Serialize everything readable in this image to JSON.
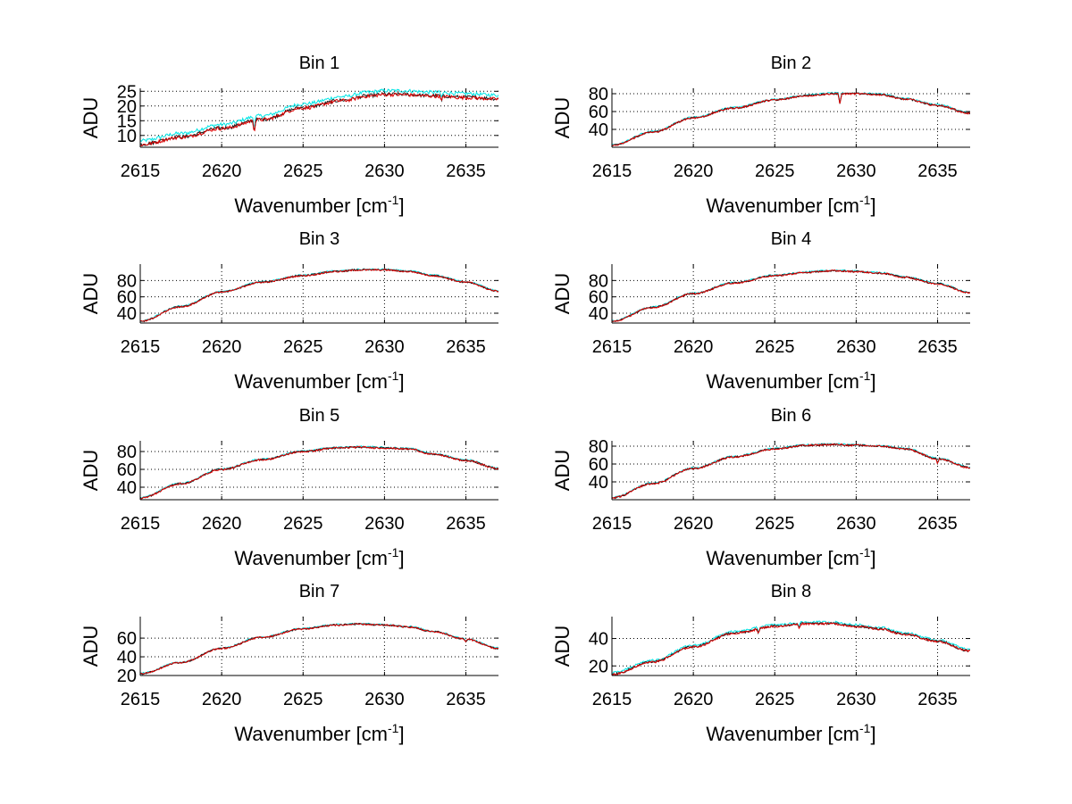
{
  "figure": {
    "background": "#ffffff"
  },
  "series_colors": [
    "#00e5e5",
    "#1a1a1a",
    "#e00000"
  ],
  "chart_data": [
    {
      "type": "line",
      "title": "Bin 1",
      "xlabel": "Wavenumber [cm",
      "xlabel_sup": "-1",
      "xlabel_close": "]",
      "ylabel": "ADU",
      "xlim": [
        2615,
        2637
      ],
      "ylim": [
        6,
        26
      ],
      "xticks": [
        2615,
        2620,
        2625,
        2630,
        2635
      ],
      "yticks": [
        10,
        15,
        20,
        25
      ],
      "curve": {
        "x": [
          2615,
          2617.5,
          2620,
          2622.5,
          2625,
          2627.5,
          2629,
          2630,
          2631,
          2633,
          2635,
          2637
        ],
        "y": [
          7,
          9.5,
          12.5,
          15.5,
          19.5,
          22,
          23.5,
          24,
          24,
          23.5,
          23,
          22.5
        ]
      },
      "dips": [
        {
          "x": 2622.0,
          "depth": 4
        },
        {
          "x": 2633.5,
          "depth": 2
        }
      ],
      "noise": 0.6,
      "cyan_offset": 1.2
    },
    {
      "type": "line",
      "title": "Bin 2",
      "xlabel": "Wavenumber [cm",
      "xlabel_sup": "-1",
      "xlabel_close": "]",
      "ylabel": "ADU",
      "xlim": [
        2615,
        2637
      ],
      "ylim": [
        20,
        86
      ],
      "xticks": [
        2615,
        2620,
        2625,
        2630,
        2635
      ],
      "yticks": [
        40,
        60,
        80
      ],
      "curve": {
        "x": [
          2615,
          2617.5,
          2620,
          2622.5,
          2625,
          2627,
          2628.5,
          2630,
          2631.5,
          2633,
          2635,
          2637
        ],
        "y": [
          22,
          37,
          53,
          64,
          73,
          78,
          80,
          80,
          79,
          74,
          67,
          58
        ]
      },
      "dips": [
        {
          "x": 2629.0,
          "depth": 12
        }
      ],
      "noise": 1.0,
      "cyan_offset": 0.6
    },
    {
      "type": "line",
      "title": "Bin 3",
      "xlabel": "Wavenumber [cm",
      "xlabel_sup": "-1",
      "xlabel_close": "]",
      "ylabel": "ADU",
      "xlim": [
        2615,
        2637
      ],
      "ylim": [
        28,
        100
      ],
      "xticks": [
        2615,
        2620,
        2625,
        2630,
        2635
      ],
      "yticks": [
        40,
        60,
        80
      ],
      "curve": {
        "x": [
          2615,
          2617.5,
          2620,
          2622.5,
          2625,
          2627,
          2628.5,
          2630,
          2631.5,
          2633,
          2635,
          2637
        ],
        "y": [
          30,
          48,
          66,
          78,
          86,
          91,
          93,
          93,
          91,
          86,
          78,
          67
        ]
      },
      "dips": [],
      "noise": 1.0,
      "cyan_offset": 0.5
    },
    {
      "type": "line",
      "title": "Bin 4",
      "xlabel": "Wavenumber [cm",
      "xlabel_sup": "-1",
      "xlabel_close": "]",
      "ylabel": "ADU",
      "xlim": [
        2615,
        2637
      ],
      "ylim": [
        28,
        100
      ],
      "xticks": [
        2615,
        2620,
        2625,
        2630,
        2635
      ],
      "yticks": [
        40,
        60,
        80
      ],
      "curve": {
        "x": [
          2615,
          2617.5,
          2620,
          2622.5,
          2625,
          2627,
          2628.5,
          2630,
          2631.5,
          2633,
          2635,
          2637
        ],
        "y": [
          30,
          47,
          64,
          77,
          86,
          90,
          92,
          91,
          89,
          84,
          76,
          65
        ]
      },
      "dips": [],
      "noise": 1.0,
      "cyan_offset": 0.5
    },
    {
      "type": "line",
      "title": "Bin 5",
      "xlabel": "Wavenumber [cm",
      "xlabel_sup": "-1",
      "xlabel_close": "]",
      "ylabel": "ADU",
      "xlim": [
        2615,
        2637
      ],
      "ylim": [
        26,
        92
      ],
      "xticks": [
        2615,
        2620,
        2625,
        2630,
        2635
      ],
      "yticks": [
        40,
        60,
        80
      ],
      "curve": {
        "x": [
          2615,
          2617.5,
          2620,
          2622.5,
          2625,
          2627,
          2628.5,
          2630,
          2631.5,
          2633,
          2635,
          2637
        ],
        "y": [
          28,
          44,
          60,
          71,
          80,
          84,
          85,
          84,
          83,
          77,
          70,
          61
        ]
      },
      "dips": [],
      "noise": 1.0,
      "cyan_offset": 0.5
    },
    {
      "type": "line",
      "title": "Bin 6",
      "xlabel": "Wavenumber [cm",
      "xlabel_sup": "-1",
      "xlabel_close": "]",
      "ylabel": "ADU",
      "xlim": [
        2615,
        2637
      ],
      "ylim": [
        20,
        86
      ],
      "xticks": [
        2615,
        2620,
        2625,
        2630,
        2635
      ],
      "yticks": [
        40,
        60,
        80
      ],
      "curve": {
        "x": [
          2615,
          2617.5,
          2620,
          2622.5,
          2625,
          2627,
          2628.5,
          2630,
          2631.5,
          2633,
          2635,
          2637
        ],
        "y": [
          22,
          38,
          55,
          68,
          77,
          81,
          82,
          81,
          80,
          77,
          66,
          56
        ]
      },
      "dips": [
        {
          "x": 2635.0,
          "depth": 5
        }
      ],
      "noise": 1.0,
      "cyan_offset": 0.5
    },
    {
      "type": "line",
      "title": "Bin 7",
      "xlabel": "Wavenumber [cm",
      "xlabel_sup": "-1",
      "xlabel_close": "]",
      "ylabel": "ADU",
      "xlim": [
        2615,
        2637
      ],
      "ylim": [
        20,
        83
      ],
      "xticks": [
        2615,
        2620,
        2625,
        2630,
        2635
      ],
      "yticks": [
        20,
        40,
        60
      ],
      "curve": {
        "x": [
          2615,
          2617.5,
          2620,
          2622.5,
          2625,
          2627,
          2628.5,
          2630,
          2631.5,
          2633,
          2635,
          2637
        ],
        "y": [
          22,
          34,
          49,
          61,
          70,
          74,
          75,
          74,
          72,
          67,
          59,
          49
        ]
      },
      "dips": [
        {
          "x": 2635.0,
          "depth": 3
        }
      ],
      "noise": 0.9,
      "cyan_offset": 0.4
    },
    {
      "type": "line",
      "title": "Bin 8",
      "xlabel": "Wavenumber [cm",
      "xlabel_sup": "-1",
      "xlabel_close": "]",
      "ylabel": "ADU",
      "xlim": [
        2615,
        2637
      ],
      "ylim": [
        13,
        56
      ],
      "xticks": [
        2615,
        2620,
        2625,
        2630,
        2635
      ],
      "yticks": [
        20,
        40
      ],
      "curve": {
        "x": [
          2615,
          2617.5,
          2620,
          2622.5,
          2625,
          2627,
          2628.5,
          2630,
          2631.5,
          2633,
          2635,
          2637
        ],
        "y": [
          14,
          23,
          34,
          44,
          49,
          51,
          51,
          49,
          47,
          43,
          38,
          31
        ]
      },
      "dips": [
        {
          "x": 2624.0,
          "depth": 4
        },
        {
          "x": 2626.5,
          "depth": 3
        }
      ],
      "noise": 0.8,
      "cyan_offset": 1.0
    }
  ]
}
